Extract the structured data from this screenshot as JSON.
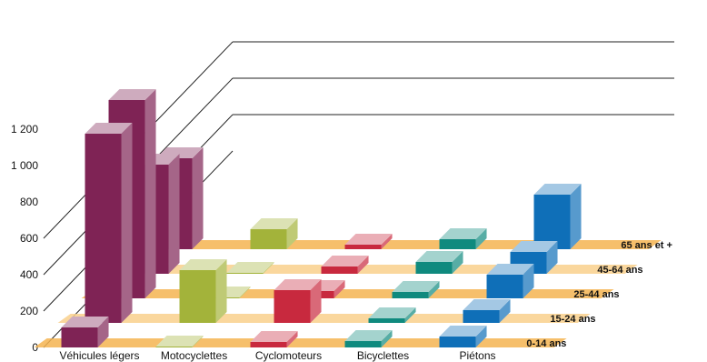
{
  "chart_data": {
    "type": "bar",
    "title": "",
    "xlabel": "",
    "ylabel": "",
    "ylim": [
      0,
      1200
    ],
    "yticks": [
      "0",
      "200",
      "400",
      "600",
      "800",
      "1 000",
      "1 200"
    ],
    "grid": true,
    "legend": "none",
    "categories": [
      "Véhicules légers",
      "Motocyclettes",
      "Cyclomoteurs",
      "Bicyclettes",
      "Piétons"
    ],
    "series": [
      {
        "name": "0-14 ans",
        "values": [
          110,
          5,
          30,
          35,
          60
        ]
      },
      {
        "name": "15-24 ans",
        "values": [
          1040,
          290,
          180,
          25,
          70
        ]
      },
      {
        "name": "25-44 ans",
        "values": [
          1090,
          5,
          40,
          35,
          130
        ]
      },
      {
        "name": "45-64 ans",
        "values": [
          600,
          5,
          40,
          65,
          120
        ]
      },
      {
        "name": "65 ans et +",
        "values": [
          500,
          110,
          25,
          55,
          300
        ]
      }
    ],
    "colors": {
      "Véhicules légers": "#7f2355",
      "Motocyclettes": "#a3b33a",
      "Cyclomoteurs": "#c8293e",
      "Bicyclettes": "#0f8a7e",
      "Piétons": "#0f6fb8",
      "floor_strip": "#f4b451"
    }
  }
}
